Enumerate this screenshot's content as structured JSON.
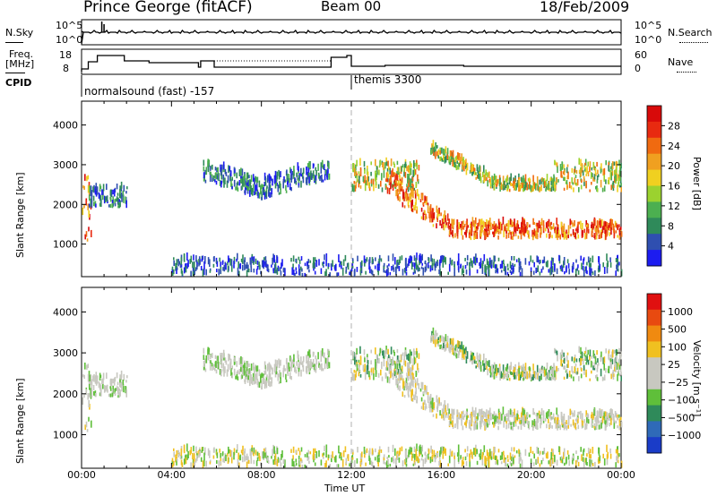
{
  "header": {
    "station": "Prince George (fitACF)",
    "beam": "Beam 00",
    "date": "18/Feb/2009"
  },
  "mini_panels": {
    "nsky_label": "N.Sky",
    "nsearch_label": "N.Search",
    "nsky_ticks": [
      "10^5",
      "10^0"
    ],
    "nsearch_ticks": [
      "10^5",
      "10^0"
    ],
    "freq_label_line1": "Freq.",
    "freq_label_line2": "[MHz]",
    "freq_ticks": [
      "18",
      "8"
    ],
    "nave_label": "Nave",
    "nave_ticks": [
      "60",
      "0"
    ],
    "cpid_label": "CPID",
    "cpid_segments": [
      {
        "label": "normalsound (fast) -157",
        "start_hour": 0
      },
      {
        "label": "themis 3300",
        "start_hour": 12
      }
    ]
  },
  "chart_data": [
    {
      "type": "heatmap",
      "panel": "power",
      "xlabel": "",
      "ylabel": "Slant Range [km]",
      "x_range_hours": [
        0,
        24
      ],
      "ylim": [
        180,
        4600
      ],
      "y_ticks": [
        1000,
        2000,
        3000,
        4000
      ],
      "colorbar": {
        "label": "Power [dB]",
        "ticks": [
          "4",
          "8",
          "12",
          "16",
          "20",
          "24",
          "28"
        ],
        "colors": [
          "#1c1cf0",
          "#2f4fb0",
          "#2f8a5a",
          "#4caf50",
          "#9bd22f",
          "#f0d020",
          "#f0a020",
          "#f06a10",
          "#e82a10",
          "#d80a0a"
        ]
      },
      "regions": [
        {
          "t": [
            0.0,
            0.4
          ],
          "range": [
            1000,
            2800
          ],
          "level": "high"
        },
        {
          "t": [
            0.3,
            2.0
          ],
          "range": [
            1900,
            2400
          ],
          "level": "low-mid"
        },
        {
          "t": [
            5.4,
            11.0
          ],
          "range": [
            2100,
            3200
          ],
          "level": "low-mid"
        },
        {
          "t": [
            12.0,
            15.0
          ],
          "range": [
            2300,
            3000
          ],
          "level": "mid"
        },
        {
          "t": [
            13.5,
            24.0
          ],
          "range": [
            900,
            2200
          ],
          "level": "high"
        },
        {
          "t": [
            15.5,
            24.0
          ],
          "range": [
            2200,
            3400
          ],
          "level": "mid"
        },
        {
          "t": [
            4.0,
            24.0
          ],
          "range": [
            180,
            600
          ],
          "level": "low"
        }
      ]
    },
    {
      "type": "heatmap",
      "panel": "velocity",
      "xlabel": "Time UT",
      "ylabel": "Slant Range [km]",
      "x_range_hours": [
        0,
        24
      ],
      "x_ticks": [
        "00:00",
        "04:00",
        "08:00",
        "12:00",
        "16:00",
        "20:00",
        "00:00"
      ],
      "ylim": [
        180,
        4600
      ],
      "y_ticks": [
        1000,
        2000,
        3000,
        4000
      ],
      "colorbar": {
        "label": "Velocity [m s⁻¹]",
        "ticks": [
          "1000",
          "500",
          "100",
          "25",
          "−25",
          "−100",
          "−500",
          "−1000"
        ],
        "colors": [
          "#1a3cc8",
          "#2f6ab8",
          "#2f8a5a",
          "#5fbf3a",
          "#c8c8c0",
          "#c8c8c0",
          "#f0c020",
          "#f08a10",
          "#e84a10",
          "#e01010"
        ]
      }
    }
  ],
  "time_axis_label": "Time UT"
}
